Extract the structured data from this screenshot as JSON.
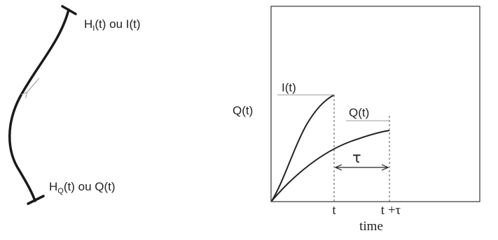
{
  "river": {
    "upstream_label": {
      "main": "H",
      "sub": "I",
      "rest": "(t) ou I(t)"
    },
    "downstream_label": {
      "main": "H",
      "sub": "Q",
      "rest": "(t) ou Q(t)"
    },
    "flow_arrow_icon": "arrow-down-left-icon"
  },
  "hydrograph": {
    "y_label": "Q(t)",
    "x_label": "time",
    "curve_inflow_label": "I(t)",
    "curve_outflow_label": "Q(t)",
    "tau_label": "τ",
    "tick_t": "t",
    "tick_t_plus_tau": "t +τ",
    "colors": {
      "line": "#222222",
      "frame": "#333333",
      "dashed": "#555555",
      "arrow": "#aaaaaa"
    }
  }
}
